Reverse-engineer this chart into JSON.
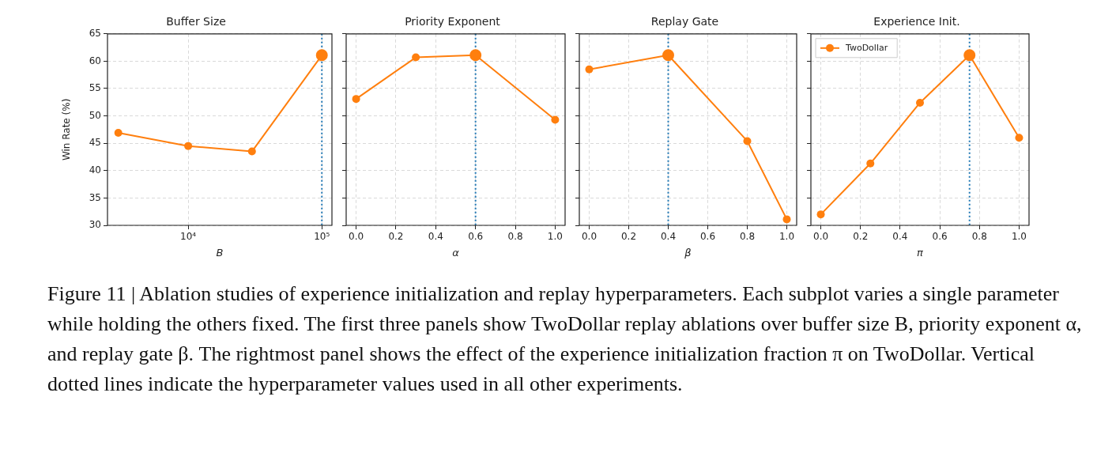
{
  "chart_data": [
    {
      "type": "line",
      "title": "Buffer Size",
      "xlabel": "B",
      "ylabel": "Win Rate (%)",
      "log": "x",
      "xlim": [
        2490,
        119000
      ],
      "xticks": [
        {
          "value": 10000,
          "label": "10⁴"
        },
        {
          "value": 100000,
          "label": "10⁵"
        }
      ],
      "ylim": [
        30,
        65
      ],
      "yticks": [
        30,
        35,
        40,
        45,
        50,
        55,
        60,
        65
      ],
      "grid": true,
      "marker": "circle",
      "legend": false,
      "series": [
        {
          "color": "#ff7f0e",
          "x": [
            3000,
            10000,
            30000,
            100000
          ],
          "values": [
            46.9,
            44.5,
            43.5,
            61.1
          ]
        },
        {
          "type": "scatter",
          "color": "#ff7f0e",
          "x": [
            100000
          ],
          "values": [
            61.1
          ]
        }
      ],
      "ref_lines": [
        {
          "axis": "x",
          "value": 100000,
          "color": "#1f77b4",
          "line_style": "dotted"
        }
      ]
    },
    {
      "type": "line",
      "title": "Priority Exponent",
      "xlabel": "α",
      "xlim": [
        -0.05,
        1.05
      ],
      "xticks": [
        {
          "value": 0,
          "label": "0.0"
        },
        0.2,
        0.4,
        0.6,
        0.8,
        {
          "value": 1,
          "label": "1.0"
        }
      ],
      "ylim": [
        30,
        65
      ],
      "yticks": [
        30,
        35,
        40,
        45,
        50,
        55,
        60,
        65
      ],
      "tick_labels": "x",
      "grid": true,
      "marker": "circle",
      "legend": false,
      "series": [
        {
          "color": "#ff7f0e",
          "x": [
            0,
            0.3,
            0.6,
            1.0
          ],
          "values": [
            53.1,
            60.7,
            61.1,
            49.3
          ]
        },
        {
          "type": "scatter",
          "color": "#ff7f0e",
          "x": [
            0.6
          ],
          "values": [
            61.1
          ]
        }
      ],
      "ref_lines": [
        {
          "axis": "x",
          "value": 0.6,
          "color": "#1f77b4",
          "line_style": "dotted"
        }
      ]
    },
    {
      "type": "line",
      "title": "Replay Gate",
      "xlabel": "β",
      "xlim": [
        -0.05,
        1.05
      ],
      "xticks": [
        {
          "value": 0,
          "label": "0.0"
        },
        0.2,
        0.4,
        0.6,
        0.8,
        {
          "value": 1,
          "label": "1.0"
        }
      ],
      "ylim": [
        30,
        65
      ],
      "yticks": [
        30,
        35,
        40,
        45,
        50,
        55,
        60,
        65
      ],
      "tick_labels": "x",
      "grid": true,
      "marker": "circle",
      "legend": false,
      "series": [
        {
          "color": "#ff7f0e",
          "x": [
            0,
            0.4,
            0.8,
            1.0
          ],
          "values": [
            58.5,
            61.1,
            45.4,
            31.1
          ]
        },
        {
          "type": "scatter",
          "color": "#ff7f0e",
          "x": [
            0.4
          ],
          "values": [
            61.1
          ]
        }
      ],
      "ref_lines": [
        {
          "axis": "x",
          "value": 0.4,
          "color": "#1f77b4",
          "line_style": "dotted"
        }
      ]
    },
    {
      "type": "line",
      "title": "Experience Init.",
      "xlabel": "π",
      "xlim": [
        -0.05,
        1.05
      ],
      "xticks": [
        {
          "value": 0,
          "label": "0.0"
        },
        0.2,
        0.4,
        0.6,
        0.8,
        {
          "value": 1,
          "label": "1.0"
        }
      ],
      "ylim": [
        30,
        65
      ],
      "yticks": [
        30,
        35,
        40,
        45,
        50,
        55,
        60,
        65
      ],
      "tick_labels": "x",
      "grid": true,
      "marker": "circle",
      "legend": "top left",
      "series": [
        {
          "name": "TwoDollar",
          "color": "#ff7f0e",
          "x": [
            0,
            0.25,
            0.5,
            0.75,
            1.0
          ],
          "values": [
            32.0,
            41.3,
            52.4,
            61.1,
            46.0
          ]
        },
        {
          "type": "scatter",
          "color": "#ff7f0e",
          "x": [
            0.75
          ],
          "values": [
            61.1
          ]
        }
      ],
      "ref_lines": [
        {
          "axis": "x",
          "value": 0.75,
          "color": "#1f77b4",
          "line_style": "dotted"
        }
      ],
      "annotations": [
        "Figure 11 | Ablation studies of experience initialization and replay hyperparameters. Each subplot varies a single parameter while holding the others fixed. The first three panels show TwoDollar replay ablations over buffer size B, priority exponent α, and replay gate β. The rightmost panel shows the effect of the experience initialization fraction π on TwoDollar. Vertical dotted lines indicate the hyperparameter values used in all other experiments."
      ]
    }
  ]
}
